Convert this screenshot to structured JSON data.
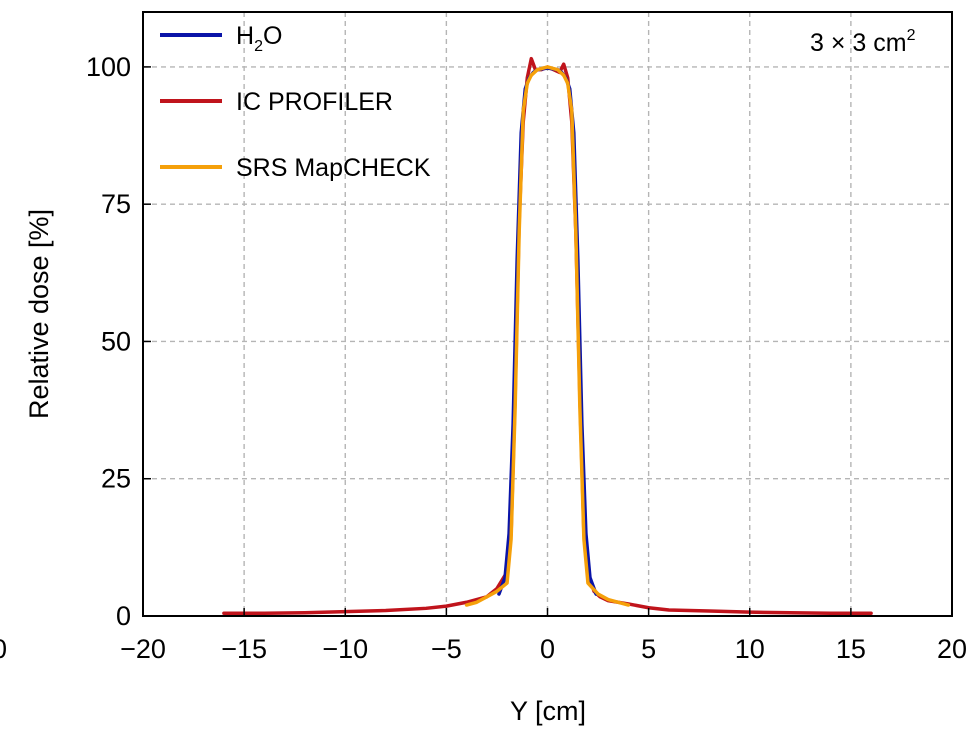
{
  "chart_data": {
    "type": "line",
    "xlabel": "Y [cm]",
    "ylabel": "Relative dose [%]",
    "annotation": {
      "base": "3 × 3 cm",
      "sup": "2"
    },
    "xlim": [
      -20,
      20
    ],
    "ylim": [
      0,
      110
    ],
    "xticks": [
      -20,
      -15,
      -10,
      -5,
      0,
      5,
      10,
      15,
      20
    ],
    "yticks": [
      0,
      25,
      50,
      75,
      100
    ],
    "xtick_labels": [
      "−20",
      "−15",
      "−10",
      "−5",
      "0",
      "5",
      "10",
      "15",
      "20"
    ],
    "ytick_labels": [
      "0",
      "25",
      "50",
      "75",
      "100"
    ],
    "left_edge_fragment": "0",
    "grid": true,
    "legend_position": "top-left",
    "series": [
      {
        "name": "H2O",
        "legend": {
          "base": "H",
          "sub": "2",
          "tail": "O"
        },
        "color": "#0a14a8",
        "x": [
          -2.4,
          -2.1,
          -1.9,
          -1.7,
          -1.5,
          -1.3,
          -1.1,
          -0.9,
          -0.7,
          -0.5,
          0,
          0.5,
          0.7,
          0.9,
          1.1,
          1.3,
          1.5,
          1.7,
          1.9,
          2.1,
          2.4
        ],
        "y": [
          4,
          7,
          15,
          35,
          65,
          88,
          96,
          98,
          99,
          99.5,
          99.8,
          99.5,
          99,
          98,
          96,
          88,
          65,
          35,
          15,
          7,
          4
        ]
      },
      {
        "name": "IC PROFILER",
        "legend": {
          "base": "IC PROFILER"
        },
        "color": "#c0141c",
        "x": [
          -16,
          -14,
          -12,
          -10,
          -8,
          -6,
          -5,
          -4,
          -3,
          -2.5,
          -2,
          -1.8,
          -1.6,
          -1.4,
          -1.2,
          -1,
          -0.8,
          -0.6,
          -0.3,
          0,
          0.3,
          0.6,
          0.8,
          1,
          1.2,
          1.4,
          1.6,
          1.8,
          2,
          2.3,
          2.6,
          3,
          4,
          5,
          6,
          8,
          10,
          12,
          14,
          16
        ],
        "y": [
          0.5,
          0.5,
          0.6,
          0.8,
          1.0,
          1.4,
          1.8,
          2.5,
          3.5,
          5,
          8,
          15,
          40,
          72,
          90,
          98,
          101.5,
          99.5,
          99.5,
          100,
          99.5,
          99,
          100.5,
          98,
          90,
          70,
          40,
          15,
          8,
          4.5,
          3.5,
          2.8,
          2.2,
          1.5,
          1.1,
          0.9,
          0.7,
          0.6,
          0.5,
          0.5
        ]
      },
      {
        "name": "SRS MapCHECK",
        "legend": {
          "base": "SRS MapCHECK"
        },
        "color": "#f5a00a",
        "x": [
          -4,
          -3.5,
          -3,
          -2.5,
          -2,
          -1.8,
          -1.6,
          -1.4,
          -1.2,
          -1,
          -0.8,
          -0.5,
          0,
          0.5,
          0.8,
          1,
          1.2,
          1.4,
          1.6,
          1.8,
          2,
          2.5,
          3,
          3.5,
          4
        ],
        "y": [
          2,
          2.5,
          3.5,
          4.5,
          6,
          14,
          38,
          70,
          92,
          97,
          98.5,
          99.5,
          100,
          99.5,
          98.5,
          97,
          92,
          70,
          38,
          14,
          6,
          4,
          3,
          2.5,
          2
        ]
      }
    ]
  }
}
